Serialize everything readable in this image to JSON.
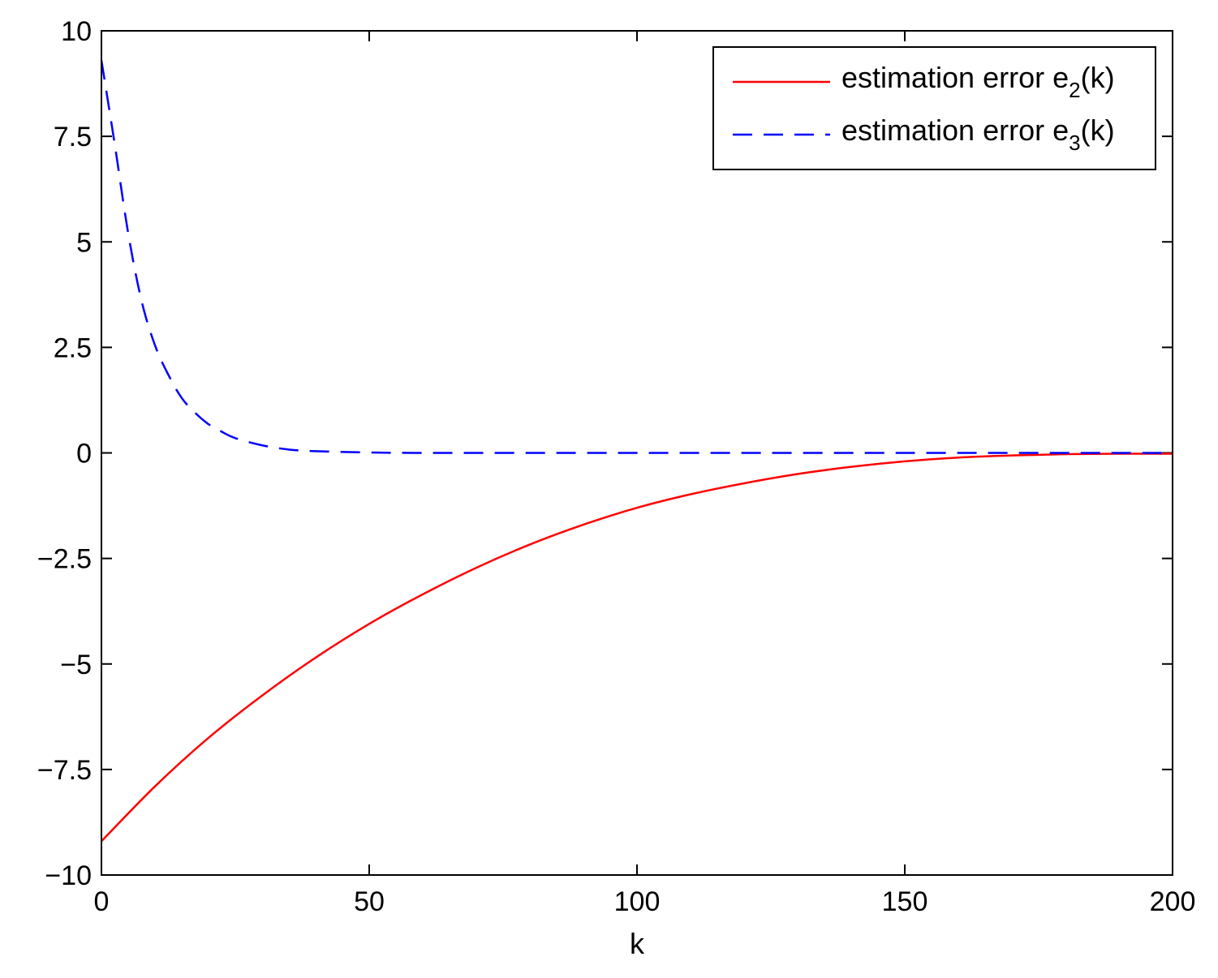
{
  "chart_data": {
    "type": "line",
    "title": "",
    "xlabel": "k",
    "ylabel": "",
    "xlim": [
      0,
      200
    ],
    "ylim": [
      -10,
      10
    ],
    "grid": false,
    "legend_position": "top-right",
    "x_ticks": [
      0,
      50,
      100,
      150,
      200
    ],
    "x_tick_labels": [
      "0",
      "50",
      "100",
      "150",
      "200"
    ],
    "y_ticks": [
      -10,
      -7.5,
      -5,
      -2.5,
      0,
      2.5,
      5,
      7.5,
      10
    ],
    "y_tick_labels": [
      "−10",
      "−7.5",
      "−5",
      "−2.5",
      "0",
      "2.5",
      "5",
      "7.5",
      "10"
    ],
    "series": [
      {
        "name": "estimation error e2(k)",
        "legend_text": "estimation error e",
        "legend_subscript": "2",
        "legend_suffix": "(k)",
        "color": "#ff0000",
        "line_style": "solid",
        "x": [
          0,
          10,
          20,
          30,
          40,
          50,
          60,
          70,
          80,
          90,
          100,
          110,
          120,
          130,
          140,
          150,
          160,
          170,
          180,
          190,
          200
        ],
        "y": [
          -9.2,
          -7.9,
          -6.75,
          -5.75,
          -4.85,
          -4.05,
          -3.35,
          -2.72,
          -2.17,
          -1.7,
          -1.3,
          -0.98,
          -0.72,
          -0.5,
          -0.33,
          -0.2,
          -0.11,
          -0.06,
          -0.03,
          -0.02,
          -0.02
        ]
      },
      {
        "name": "estimation error e3(k)",
        "legend_text": "estimation error e",
        "legend_subscript": "3",
        "legend_suffix": "(k)",
        "color": "#0000ff",
        "line_style": "dashed",
        "x": [
          0,
          2.5,
          5,
          7.5,
          10,
          12.5,
          15,
          17.5,
          20,
          22.5,
          25,
          30,
          35,
          40,
          50,
          60,
          80,
          100,
          150,
          200
        ],
        "y": [
          9.3,
          7.3,
          5.2,
          3.6,
          2.55,
          1.85,
          1.3,
          0.95,
          0.68,
          0.5,
          0.35,
          0.18,
          0.08,
          0.04,
          0.01,
          0.0,
          0.0,
          0.0,
          0.0,
          0.0
        ]
      }
    ]
  }
}
